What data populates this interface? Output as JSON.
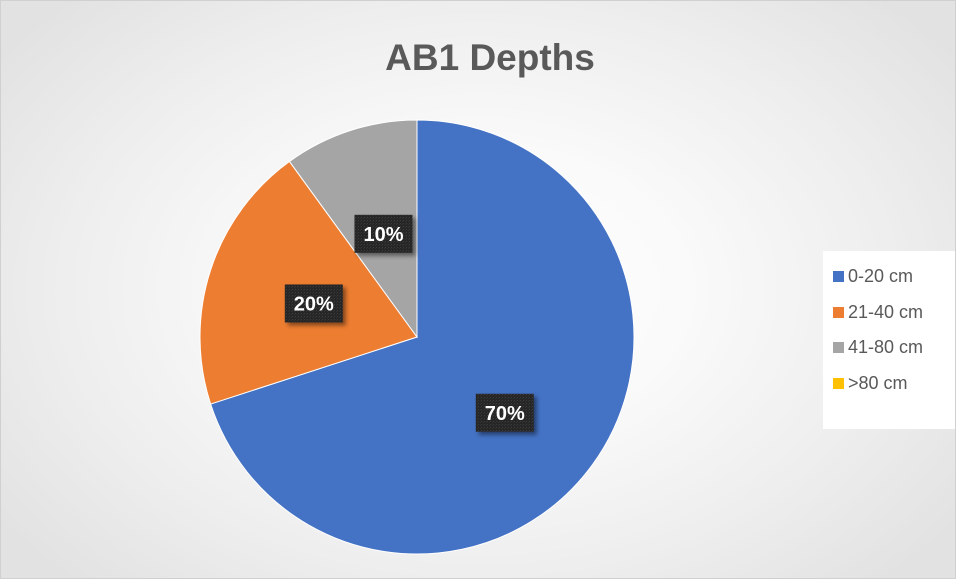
{
  "chart_data": {
    "type": "pie",
    "title": "AB1 Depths",
    "categories": [
      "0-20 cm",
      "21-40 cm",
      "41-80 cm",
      ">80 cm"
    ],
    "values": [
      70,
      20,
      10,
      0
    ],
    "data_labels": [
      "70%",
      "20%",
      "10%",
      ""
    ],
    "colors": [
      "#4472C4",
      "#ED7D31",
      "#A5A5A5",
      "#FFC000"
    ],
    "legend": "right",
    "start_angle": "12 o'clock",
    "direction": "clockwise"
  }
}
